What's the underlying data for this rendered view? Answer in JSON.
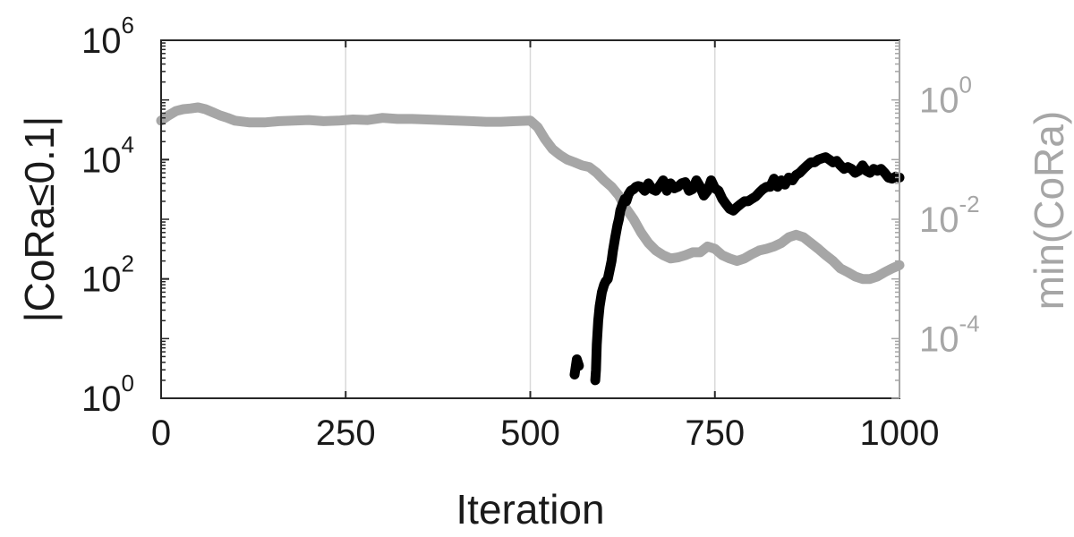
{
  "chart_data": {
    "type": "line",
    "xlabel": "Iteration",
    "ylabel_left": "|CoRa≤0.1|",
    "ylabel_right": "min(CoRa)",
    "xlim": [
      0,
      1000
    ],
    "xticks": [
      "0",
      "250",
      "500",
      "750",
      "1000"
    ],
    "ylim_left": [
      1,
      1000000
    ],
    "yscale_left": "log",
    "yticks_left": [
      {
        "base": "10",
        "exp": "0"
      },
      {
        "base": "10",
        "exp": "2"
      },
      {
        "base": "10",
        "exp": "4"
      },
      {
        "base": "10",
        "exp": "6"
      }
    ],
    "ylim_right": [
      1e-05,
      10
    ],
    "yscale_right": "log",
    "yticks_right": [
      {
        "base": "10",
        "exp": "-4"
      },
      {
        "base": "10",
        "exp": "-2"
      },
      {
        "base": "10",
        "exp": "0"
      }
    ],
    "grid": "vertical",
    "colors": {
      "left_series": "#000000",
      "right_series": "#a6a6a6",
      "grid": "#d9d9d9",
      "axes": "#262626"
    },
    "series": [
      {
        "axis": "left",
        "color": "#000000",
        "x": [
          560,
          563,
          566
        ],
        "y": [
          2.5,
          4.5,
          3.5
        ]
      },
      {
        "axis": "left",
        "color": "#000000",
        "x": [
          588,
          589,
          590,
          592,
          594,
          597,
          600,
          602,
          605,
          608,
          610,
          612,
          615,
          618,
          620,
          622,
          625,
          628,
          630,
          633,
          636,
          640,
          643,
          646,
          650,
          655,
          660,
          665,
          670,
          675,
          680,
          685,
          690,
          695,
          700,
          705,
          710,
          715,
          720,
          725,
          730,
          735,
          740,
          745,
          750,
          755,
          760,
          765,
          770,
          775,
          780,
          785,
          790,
          795,
          800,
          805,
          810,
          815,
          820,
          825,
          830,
          835,
          840,
          845,
          850,
          855,
          860,
          865,
          870,
          875,
          880,
          885,
          890,
          895,
          900,
          905,
          910,
          915,
          920,
          925,
          930,
          935,
          940,
          945,
          950,
          955,
          960,
          965,
          970,
          975,
          980,
          985,
          990,
          995,
          1000
        ],
        "y": [
          2,
          3,
          8,
          20,
          35,
          60,
          80,
          90,
          100,
          150,
          200,
          300,
          500,
          800,
          1000,
          1400,
          1800,
          2200,
          2000,
          2600,
          3000,
          3200,
          3500,
          3600,
          3500,
          3000,
          4000,
          3200,
          3000,
          3600,
          4500,
          3000,
          4000,
          3300,
          3500,
          4000,
          4200,
          3000,
          3200,
          4500,
          3500,
          2500,
          3000,
          4500,
          3300,
          3000,
          2200,
          1800,
          1500,
          1400,
          1600,
          1800,
          2000,
          2000,
          2200,
          2400,
          2800,
          3200,
          3500,
          3500,
          4800,
          3500,
          4500,
          3800,
          5000,
          4500,
          5500,
          6000,
          7000,
          8000,
          9000,
          9000,
          10000,
          10500,
          11000,
          10000,
          9000,
          9500,
          8000,
          7000,
          7500,
          7000,
          6000,
          6500,
          8000,
          6500,
          6000,
          7000,
          6500,
          7000,
          6000,
          5000,
          4800,
          5200,
          5000
        ]
      },
      {
        "axis": "right",
        "color": "#a6a6a6",
        "x": [
          0,
          10,
          20,
          30,
          40,
          50,
          60,
          70,
          80,
          90,
          100,
          120,
          140,
          160,
          180,
          200,
          220,
          240,
          260,
          280,
          300,
          320,
          340,
          360,
          380,
          400,
          420,
          440,
          460,
          480,
          500,
          510,
          520,
          530,
          540,
          550,
          560,
          570,
          580,
          590,
          600,
          610,
          620,
          630,
          640,
          650,
          660,
          670,
          680,
          690,
          700,
          710,
          720,
          730,
          740,
          750,
          760,
          770,
          780,
          790,
          800,
          810,
          820,
          830,
          840,
          850,
          860,
          870,
          880,
          890,
          900,
          910,
          920,
          930,
          940,
          950,
          960,
          970,
          980,
          990,
          1000
        ],
        "y": [
          0.45,
          0.55,
          0.65,
          0.7,
          0.72,
          0.75,
          0.7,
          0.62,
          0.55,
          0.5,
          0.45,
          0.42,
          0.42,
          0.44,
          0.45,
          0.46,
          0.44,
          0.45,
          0.47,
          0.46,
          0.5,
          0.48,
          0.48,
          0.47,
          0.46,
          0.45,
          0.44,
          0.43,
          0.43,
          0.44,
          0.45,
          0.35,
          0.22,
          0.15,
          0.12,
          0.1,
          0.09,
          0.08,
          0.075,
          0.06,
          0.045,
          0.035,
          0.025,
          0.015,
          0.01,
          0.006,
          0.004,
          0.003,
          0.0025,
          0.0022,
          0.0023,
          0.0025,
          0.0028,
          0.0028,
          0.0035,
          0.0032,
          0.0025,
          0.0022,
          0.002,
          0.0022,
          0.0026,
          0.003,
          0.0032,
          0.0035,
          0.004,
          0.005,
          0.0055,
          0.005,
          0.004,
          0.0032,
          0.0025,
          0.002,
          0.0015,
          0.0013,
          0.0011,
          0.001,
          0.001,
          0.0011,
          0.0013,
          0.0015,
          0.0017
        ]
      }
    ]
  }
}
